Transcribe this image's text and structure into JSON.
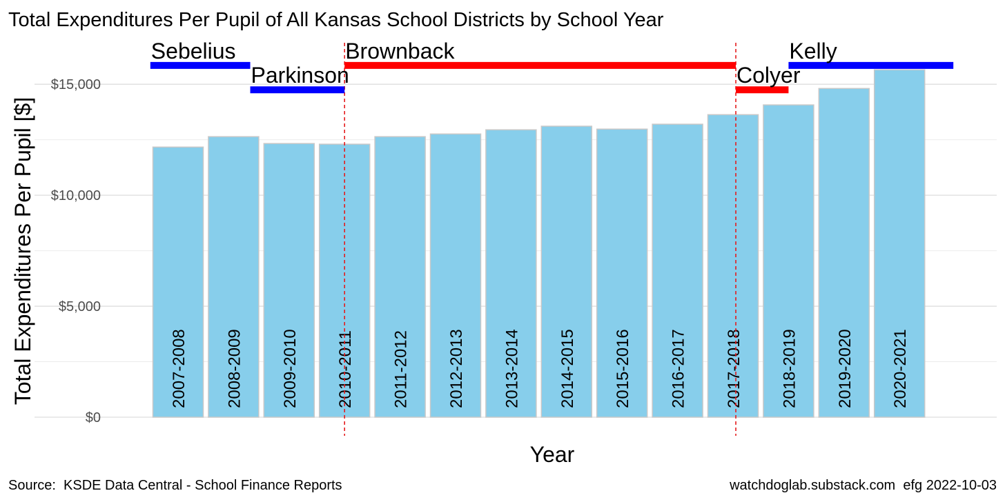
{
  "chart_data": {
    "type": "bar",
    "title": "Total Expenditures Per Pupil of All Kansas School Districts by School Year",
    "x_label": "Year",
    "y_label": "Total Expenditures Per Pupil [$]",
    "source": "Source:  KSDE Data Central - School Finance Reports",
    "credit": "watchdoglab.substack.com  efg 2022-10-03",
    "categories": [
      "2007-2008",
      "2008-2009",
      "2009-2010",
      "2010-2011",
      "2011-2012",
      "2012-2013",
      "2013-2014",
      "2014-2015",
      "2015-2016",
      "2016-2017",
      "2017-2018",
      "2018-2019",
      "2019-2020",
      "2020-2021"
    ],
    "values": [
      12170,
      12640,
      12330,
      12300,
      12640,
      12760,
      12950,
      13110,
      12980,
      13200,
      13630,
      14070,
      14810,
      15650
    ],
    "color": "#87ceeb",
    "ylim": [
      0,
      16000
    ],
    "yticks": [
      {
        "value": 0,
        "label": "$0"
      },
      {
        "value": 5000,
        "label": "$5,000"
      },
      {
        "value": 10000,
        "label": "$10,000"
      },
      {
        "value": 15000,
        "label": "$15,000"
      }
    ],
    "minor_yticks": [
      2500,
      7500,
      12500
    ],
    "grid": true,
    "governors": [
      {
        "name": "Sebelius",
        "color": "#0000ff",
        "start": 2007.5,
        "end": 2009.3,
        "y": 15850
      },
      {
        "name": "Parkinson",
        "color": "#0000ff",
        "start": 2009.3,
        "end": 2011.0,
        "y": 14750
      },
      {
        "name": "Brownback",
        "color": "#ff0000",
        "start": 2011.0,
        "end": 2018.05,
        "y": 15850
      },
      {
        "name": "Colyer",
        "color": "#ff0000",
        "start": 2018.05,
        "end": 2019.0,
        "y": 14750
      },
      {
        "name": "Kelly",
        "color": "#0000ff",
        "start": 2019.0,
        "end": 2021.97,
        "y": 15850
      }
    ],
    "vlines": [
      2011.0,
      2018.05
    ]
  }
}
